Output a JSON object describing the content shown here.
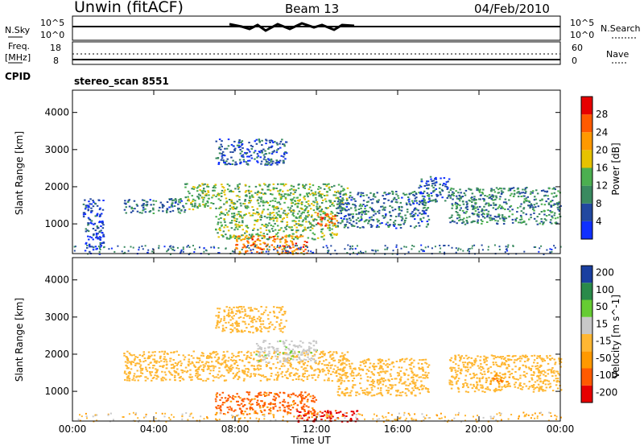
{
  "header": {
    "station": "Unwin (fitACF)",
    "beam": "Beam 13",
    "date": "04/Feb/2010"
  },
  "summary_panels": {
    "nsky_label": "N.Sky",
    "nsky_ticks": [
      "10^5",
      "10^0"
    ],
    "nsearch_label": "N.Search",
    "freq_label": "Freq.",
    "freq_unit": "[MHz]",
    "freq_ticks": [
      "18",
      "8"
    ],
    "nave_label": "Nave",
    "nave_ticks": [
      "60",
      "0"
    ],
    "cpid_label": "CPID",
    "cpid_value": "stereo_scan 8551"
  },
  "x_axis": {
    "label": "Time UT",
    "ticks": [
      "00:00",
      "04:00",
      "08:00",
      "12:00",
      "16:00",
      "20:00",
      "00:00"
    ]
  },
  "colors": {
    "power_scale": [
      "#1030ff",
      "#2248a0",
      "#3a8a60",
      "#4caf50",
      "#e6c200",
      "#ff9900",
      "#ff5a00",
      "#e60000"
    ],
    "velocity_scale": [
      "#e60000",
      "#ff5a00",
      "#ff9900",
      "#ffb733",
      "#c8c8c8",
      "#66cc33",
      "#2a8a4a",
      "#1a3fa0"
    ]
  },
  "chart_data": [
    {
      "type": "heatmap",
      "title": "",
      "ylabel": "Slant Range [km]",
      "xlabel": "",
      "y_ticks": [
        "1000",
        "2000",
        "3000",
        "4000"
      ],
      "ylim": [
        200,
        4600
      ],
      "xlim_hours": [
        0,
        24
      ],
      "colorbar": {
        "label": "Power [dB]",
        "ticks": [
          "4",
          "8",
          "12",
          "16",
          "20",
          "24",
          "28"
        ]
      },
      "features": [
        {
          "t_start": 0.5,
          "t_end": 1.5,
          "range_start": 200,
          "range_end": 1700,
          "power_db": 4
        },
        {
          "t_start": 2.5,
          "t_end": 5.5,
          "range_start": 1300,
          "range_end": 1700,
          "power_db": 8
        },
        {
          "t_start": 5.5,
          "t_end": 13.5,
          "range_start": 1400,
          "range_end": 2100,
          "power_db": 14
        },
        {
          "t_start": 7.0,
          "t_end": 10.5,
          "range_start": 2600,
          "range_end": 3300,
          "power_db": 6
        },
        {
          "t_start": 7.0,
          "t_end": 13.0,
          "range_start": 600,
          "range_end": 1400,
          "power_db": 14
        },
        {
          "t_start": 8.0,
          "t_end": 11.5,
          "range_start": 200,
          "range_end": 700,
          "power_db": 24
        },
        {
          "t_start": 12.0,
          "t_end": 13.0,
          "range_start": 950,
          "range_end": 1300,
          "power_db": 26
        },
        {
          "t_start": 13.0,
          "t_end": 17.5,
          "range_start": 900,
          "range_end": 1900,
          "power_db": 8
        },
        {
          "t_start": 17.0,
          "t_end": 18.5,
          "range_start": 1600,
          "range_end": 2300,
          "power_db": 6
        },
        {
          "t_start": 18.5,
          "t_end": 24.0,
          "range_start": 1000,
          "range_end": 2000,
          "power_db": 10
        }
      ]
    },
    {
      "type": "heatmap",
      "title": "",
      "ylabel": "Slant Range [km]",
      "xlabel": "Time UT",
      "y_ticks": [
        "1000",
        "2000",
        "3000",
        "4000"
      ],
      "ylim": [
        200,
        4600
      ],
      "xlim_hours": [
        0,
        24
      ],
      "colorbar": {
        "label": "Velocity [m s^-1]",
        "ticks": [
          "-200",
          "-100",
          "-50",
          "-15",
          "15",
          "50",
          "100",
          "200"
        ]
      },
      "features": [
        {
          "t_start": 2.5,
          "t_end": 13.5,
          "range_start": 1300,
          "range_end": 2100,
          "velocity": 0
        },
        {
          "t_start": 7.0,
          "t_end": 10.5,
          "range_start": 2600,
          "range_end": 3300,
          "velocity": 0
        },
        {
          "t_start": 7.0,
          "t_end": 12.0,
          "range_start": 400,
          "range_end": 1000,
          "velocity": -60
        },
        {
          "t_start": 9.0,
          "t_end": 12.0,
          "range_start": 1800,
          "range_end": 2400,
          "velocity": 40
        },
        {
          "t_start": 11.0,
          "t_end": 14.0,
          "range_start": 200,
          "range_end": 500,
          "velocity": -110
        },
        {
          "t_start": 13.0,
          "t_end": 17.5,
          "range_start": 900,
          "range_end": 1900,
          "velocity": 0
        },
        {
          "t_start": 18.5,
          "t_end": 24.0,
          "range_start": 1000,
          "range_end": 2000,
          "velocity": 0
        },
        {
          "t_start": 20.5,
          "t_end": 21.5,
          "range_start": 1200,
          "range_end": 1500,
          "velocity": -40
        }
      ]
    }
  ]
}
